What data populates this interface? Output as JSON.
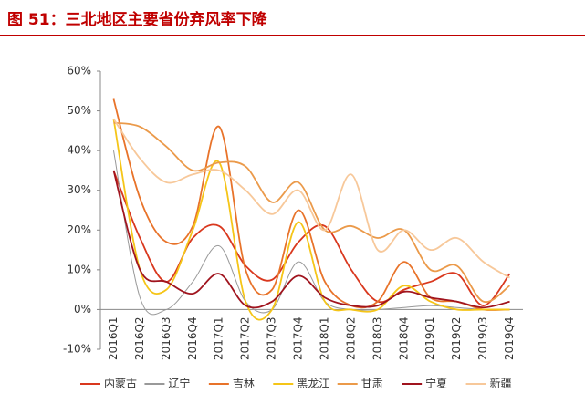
{
  "chart_data": {
    "type": "line",
    "title": "图 51：三北地区主要省份弃风率下降",
    "categories": [
      "2016Q1",
      "2016Q2",
      "2016Q3",
      "2016Q4",
      "2017Q1",
      "2017Q2",
      "2017Q3",
      "2017Q4",
      "2018Q1",
      "2018Q2",
      "2018Q3",
      "2018Q4",
      "2019Q1",
      "2019Q2",
      "2019Q3",
      "2019Q4"
    ],
    "ylim": [
      -10,
      60
    ],
    "yticks": [
      {
        "value": -10,
        "label": "-10%"
      },
      {
        "value": 0,
        "label": "0%"
      },
      {
        "value": 10,
        "label": "10%"
      },
      {
        "value": 20,
        "label": "20%"
      },
      {
        "value": 30,
        "label": "30%"
      },
      {
        "value": 40,
        "label": "40%"
      },
      {
        "value": 50,
        "label": "50%"
      },
      {
        "value": 60,
        "label": "60%"
      }
    ],
    "series": [
      {
        "name": "内蒙古",
        "color": "#d9381e",
        "values": [
          35,
          18,
          7,
          18,
          21,
          11,
          7.5,
          17,
          21,
          10,
          2,
          5,
          7,
          9,
          1,
          9
        ]
      },
      {
        "name": "辽宁",
        "color": "#999999",
        "values": [
          40,
          3,
          0,
          7,
          16,
          2,
          0,
          12,
          2,
          0,
          0,
          0.5,
          1,
          0.5,
          0,
          0
        ]
      },
      {
        "name": "吉林",
        "color": "#e8732a",
        "values": [
          53,
          28,
          17,
          21,
          46,
          10,
          5,
          25,
          7,
          1,
          2,
          12,
          3,
          2,
          0,
          0
        ]
      },
      {
        "name": "黑龙江",
        "color": "#f5c518",
        "values": [
          48,
          10,
          5,
          20,
          37,
          2,
          0,
          22,
          2,
          0,
          0,
          6,
          2,
          0,
          0,
          0
        ]
      },
      {
        "name": "甘肃",
        "color": "#eb9a4a",
        "values": [
          47,
          46,
          41,
          35,
          37,
          36,
          27,
          32,
          20,
          21,
          18,
          20,
          10,
          11,
          2,
          6
        ]
      },
      {
        "name": "宁夏",
        "color": "#a0141e",
        "values": [
          35,
          10,
          7,
          4,
          9,
          1,
          2,
          8.5,
          3,
          1,
          1,
          4.5,
          3,
          2,
          0.5,
          2
        ]
      },
      {
        "name": "新疆",
        "color": "#f7c89a",
        "values": [
          48,
          38,
          32,
          34,
          35,
          30,
          24,
          30,
          20,
          34,
          15,
          20,
          15,
          18,
          12,
          8
        ]
      }
    ]
  }
}
